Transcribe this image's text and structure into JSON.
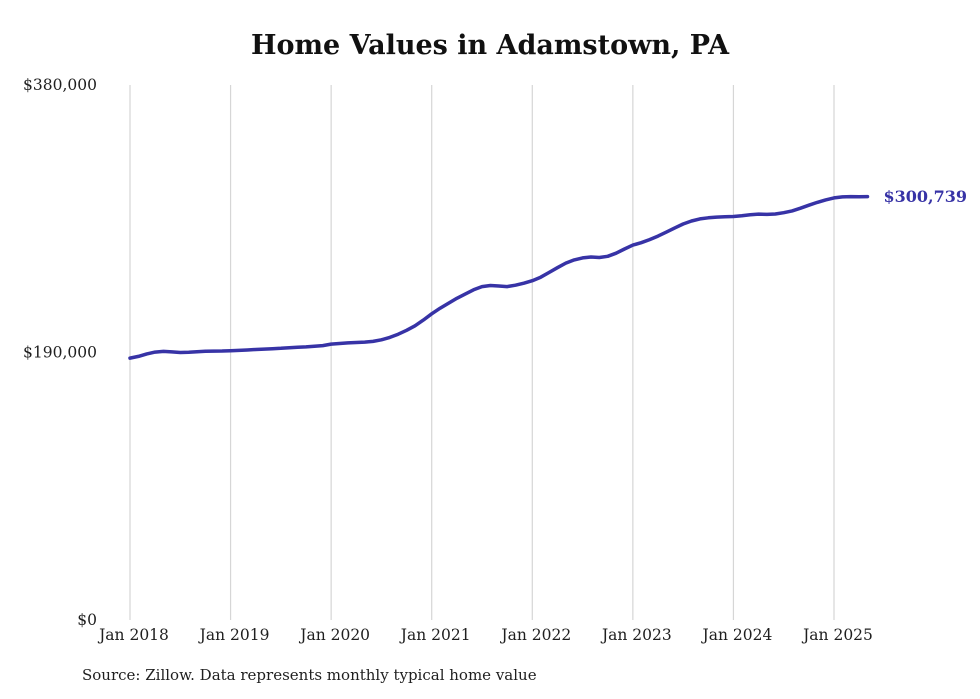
{
  "page": {
    "background": "#ffffff"
  },
  "chart": {
    "title": "Home Values in Adamstown, PA",
    "end_label": "$300,739",
    "source": "Source: Zillow. Data represents monthly typical home value",
    "line_color": "#3733a6",
    "grid_color": "#d6d6d6",
    "text_color": "#1f1f1f"
  },
  "chart_data": {
    "type": "line",
    "title": "Home Values in Adamstown, PA",
    "ylabel": "",
    "xlabel": "",
    "ylim": [
      0,
      380000
    ],
    "grid": "vertical",
    "legend": "none",
    "y_ticks": [
      {
        "value": 0,
        "label": "$0"
      },
      {
        "value": 190000,
        "label": "$190,000"
      },
      {
        "value": 380000,
        "label": "$380,000"
      }
    ],
    "x_ticks": [
      "Jan 2018",
      "Jan 2019",
      "Jan 2020",
      "Jan 2021",
      "Jan 2022",
      "Jan 2023",
      "Jan 2024",
      "Jan 2025"
    ],
    "last_value_label": "$300,739",
    "source": "Source: Zillow. Data represents monthly typical home value",
    "x": [
      "Jan 2018",
      "Feb 2018",
      "Mar 2018",
      "Apr 2018",
      "May 2018",
      "Jun 2018",
      "Jul 2018",
      "Aug 2018",
      "Sep 2018",
      "Oct 2018",
      "Nov 2018",
      "Dec 2018",
      "Jan 2019",
      "Feb 2019",
      "Mar 2019",
      "Apr 2019",
      "May 2019",
      "Jun 2019",
      "Jul 2019",
      "Aug 2019",
      "Sep 2019",
      "Oct 2019",
      "Nov 2019",
      "Dec 2019",
      "Jan 2020",
      "Feb 2020",
      "Mar 2020",
      "Apr 2020",
      "May 2020",
      "Jun 2020",
      "Jul 2020",
      "Aug 2020",
      "Sep 2020",
      "Oct 2020",
      "Nov 2020",
      "Dec 2020",
      "Jan 2021",
      "Feb 2021",
      "Mar 2021",
      "Apr 2021",
      "May 2021",
      "Jun 2021",
      "Jul 2021",
      "Aug 2021",
      "Sep 2021",
      "Oct 2021",
      "Nov 2021",
      "Dec 2021",
      "Jan 2022",
      "Feb 2022",
      "Mar 2022",
      "Apr 2022",
      "May 2022",
      "Jun 2022",
      "Jul 2022",
      "Aug 2022",
      "Sep 2022",
      "Oct 2022",
      "Nov 2022",
      "Dec 2022",
      "Jan 2023",
      "Feb 2023",
      "Mar 2023",
      "Apr 2023",
      "May 2023",
      "Jun 2023",
      "Jul 2023",
      "Aug 2023",
      "Sep 2023",
      "Oct 2023",
      "Nov 2023",
      "Dec 2023",
      "Jan 2024",
      "Feb 2024",
      "Mar 2024",
      "Apr 2024",
      "May 2024",
      "Jun 2024",
      "Jul 2024",
      "Aug 2024",
      "Sep 2024",
      "Oct 2024",
      "Nov 2024",
      "Dec 2024",
      "Jan 2025",
      "Feb 2025",
      "Mar 2025",
      "Apr 2025",
      "May 2025"
    ],
    "values": [
      186000,
      187200,
      189000,
      190300,
      190800,
      190400,
      190000,
      190200,
      190600,
      190900,
      191000,
      191100,
      191300,
      191500,
      191800,
      192100,
      192400,
      192700,
      193000,
      193400,
      193700,
      194000,
      194400,
      194900,
      196000,
      196400,
      196800,
      197100,
      197400,
      197900,
      199000,
      200700,
      203000,
      205800,
      209000,
      213000,
      217500,
      221500,
      225000,
      228500,
      231500,
      234500,
      236800,
      237600,
      237200,
      236800,
      237800,
      239200,
      241000,
      243500,
      246800,
      250200,
      253500,
      255800,
      257200,
      257800,
      257500,
      258300,
      260500,
      263500,
      266300,
      268000,
      270200,
      272700,
      275500,
      278500,
      281300,
      283400,
      284900,
      285700,
      286200,
      286400,
      286600,
      287100,
      287800,
      288300,
      288100,
      288400,
      289300,
      290600,
      292500,
      294600,
      296600,
      298400,
      299800,
      300500,
      300700,
      300600,
      300739
    ]
  }
}
